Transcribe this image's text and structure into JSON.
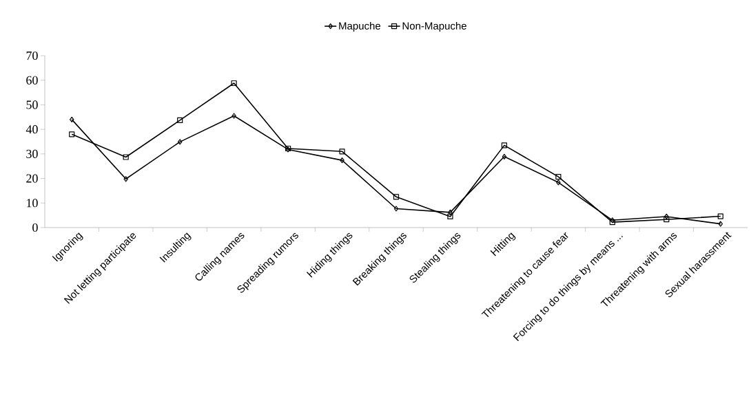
{
  "chart_data": {
    "type": "line",
    "categories": [
      "Ignoring",
      "Not letting participate",
      "Insulting",
      "Calling names",
      "Spreading rumors",
      "Hiding things",
      "Breaking things",
      "Stealing things",
      "Hitting",
      "Threatening to cause fear",
      "Forcing to do things by means ...",
      "Threatening with arms",
      "Sexual  harassment"
    ],
    "series": [
      {
        "name": "Mapuche",
        "color": "#000000",
        "marker": "diamond",
        "values": [
          44,
          19.8,
          34.9,
          45.5,
          31.8,
          27.4,
          7.7,
          6.2,
          28.9,
          18.4,
          3.0,
          4.5,
          1.5
        ]
      },
      {
        "name": "Non-Mapuche",
        "color": "#000000",
        "marker": "square",
        "values": [
          38,
          28.7,
          43.7,
          58.8,
          32.2,
          31.0,
          12.5,
          4.5,
          33.5,
          20.7,
          2.2,
          3.3,
          4.6
        ]
      }
    ],
    "ylim": [
      0,
      70
    ],
    "yticks": [
      0,
      10,
      20,
      30,
      40,
      50,
      60,
      70
    ],
    "legend": "top",
    "grid": false,
    "line_style": "solid"
  }
}
